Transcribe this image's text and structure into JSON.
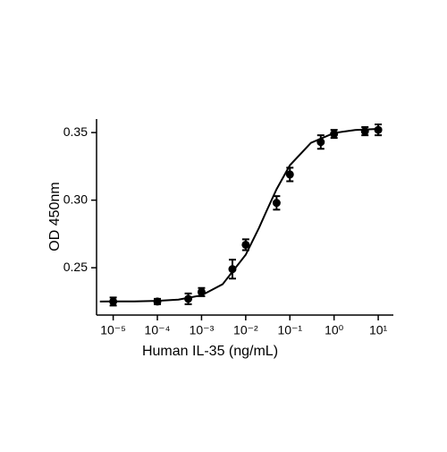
{
  "chart_data": {
    "type": "scatter",
    "xlabel": "Human IL-35 (ng/mL)",
    "ylabel": "OD 450nm",
    "xscale": "log",
    "xlim": [
      4.2e-06,
      22
    ],
    "ylim": [
      0.215,
      0.36
    ],
    "xticks": [
      {
        "value": 1e-05,
        "label": "10⁻⁵"
      },
      {
        "value": 0.0001,
        "label": "10⁻⁴"
      },
      {
        "value": 0.001,
        "label": "10⁻³"
      },
      {
        "value": 0.01,
        "label": "10⁻²"
      },
      {
        "value": 0.1,
        "label": "10⁻¹"
      },
      {
        "value": 1,
        "label": "10⁰"
      },
      {
        "value": 10,
        "label": "10¹"
      }
    ],
    "yticks": [
      0.25,
      {
        "value": 0.3,
        "label": "0.30"
      },
      0.35
    ],
    "color": "#000000",
    "series": [
      {
        "type": "scatter",
        "x": [
          1e-05,
          0.0001,
          0.0005,
          0.001,
          0.005,
          0.01,
          0.05,
          0.1,
          0.5,
          1,
          5,
          10
        ],
        "values": [
          0.225,
          0.225,
          0.227,
          0.232,
          0.249,
          0.267,
          0.298,
          0.319,
          0.343,
          0.349,
          0.351,
          0.352
        ],
        "errors": [
          0.003,
          0.002,
          0.004,
          0.003,
          0.007,
          0.004,
          0.005,
          0.005,
          0.005,
          0.003,
          0.003,
          0.004
        ]
      },
      {
        "type": "line",
        "x": [
          5e-06,
          1e-05,
          3e-05,
          0.0001,
          0.0003,
          0.001,
          0.003,
          0.01,
          0.02,
          0.03,
          0.05,
          0.1,
          0.3,
          1,
          3,
          10
        ],
        "values": [
          0.225,
          0.2251,
          0.2251,
          0.2255,
          0.2264,
          0.2296,
          0.2378,
          0.2596,
          0.2795,
          0.2924,
          0.3081,
          0.3258,
          0.3424,
          0.3497,
          0.3519,
          0.3527
        ]
      }
    ]
  }
}
